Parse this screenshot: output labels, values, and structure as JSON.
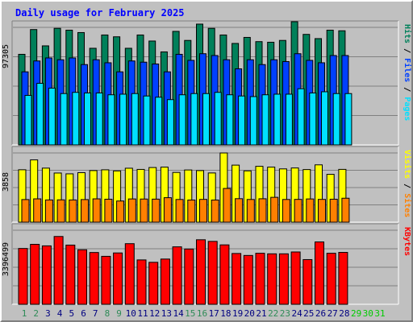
{
  "chart_data": {
    "type": "bar",
    "title": "Daily usage for February 2025",
    "title_color": "#0000ff",
    "categories": [
      "1",
      "2",
      "3",
      "4",
      "5",
      "6",
      "7",
      "8",
      "9",
      "10",
      "11",
      "12",
      "13",
      "14",
      "15",
      "16",
      "17",
      "18",
      "19",
      "20",
      "21",
      "22",
      "23",
      "24",
      "25",
      "26",
      "27",
      "28",
      "29",
      "30",
      "31"
    ],
    "weekend_color": "#2e8b57",
    "weekday_color": "#000080",
    "future_color": "#00cc00",
    "weekend_days": [
      "1",
      "2",
      "8",
      "9",
      "15",
      "16",
      "22",
      "23"
    ],
    "future_days": [
      "29",
      "30",
      "31"
    ],
    "panels": [
      {
        "max_label": "97305",
        "ymax": 97305,
        "series": [
          {
            "name": "Hits",
            "color": "#00805a",
            "values": [
              75000,
              95500,
              82000,
              96500,
              95000,
              93000,
              80000,
              91000,
              89500,
              80000,
              91000,
              86000,
              77000,
              94000,
              86500,
              100000,
              96500,
              91000,
              84000,
              89000,
              85500,
              85000,
              86500,
              102000,
              91500,
              88000,
              95000,
              94500
            ]
          },
          {
            "name": "Files",
            "color": "#0040ff",
            "values": [
              60500,
              69500,
              72000,
              70500,
              72000,
              66500,
              70500,
              68000,
              60500,
              69500,
              68500,
              67000,
              60500,
              75000,
              70000,
              75500,
              74000,
              70500,
              63000,
              70500,
              66500,
              70500,
              69000,
              75500,
              70000,
              68000,
              74000,
              74000
            ]
          },
          {
            "name": "Pages",
            "color": "#00e0ff",
            "values": [
              41000,
              51000,
              47000,
              42500,
              43500,
              43000,
              43000,
              41500,
              42000,
              42500,
              40500,
              39500,
              37500,
              41500,
              42500,
              42500,
              43500,
              41500,
              40500,
              40000,
              41500,
              42000,
              42000,
              46500,
              43000,
              44000,
              42500,
              42500
            ]
          }
        ]
      },
      {
        "max_label": "3858",
        "ymax": 3858,
        "series": [
          {
            "name": "Visits",
            "color": "#ffff00",
            "values": [
              2922,
              3471,
              3013,
              2739,
              2694,
              2760,
              2876,
              2919,
              2857,
              3007,
              2941,
              3046,
              3068,
              2772,
              2910,
              2874,
              2743,
              3858,
              3180,
              2860,
              3113,
              3068,
              2970,
              3021,
              2933,
              3195,
              2666,
              2943
            ]
          },
          {
            "name": "Sites",
            "color": "#ff8000",
            "values": [
              1260,
              1300,
              1240,
              1245,
              1240,
              1260,
              1300,
              1280,
              1180,
              1295,
              1290,
              1285,
              1365,
              1265,
              1235,
              1270,
              1235,
              1880,
              1310,
              1265,
              1305,
              1385,
              1265,
              1270,
              1295,
              1270,
              1280,
              1335
            ]
          }
        ]
      },
      {
        "max_label": "3396499",
        "ymax": 3396499,
        "series": [
          {
            "name": "KBytes",
            "color": "#ff0000",
            "values": [
              2560000,
              2750000,
              2680000,
              3110000,
              2715000,
              2500000,
              2375000,
              2200000,
              2355000,
              2780000,
              2035000,
              1925000,
              2075000,
              2635000,
              2535000,
              2960000,
              2885000,
              2725000,
              2330000,
              2240000,
              2340000,
              2315000,
              2315000,
              2400000,
              2050000,
              2860000,
              2340000,
              2380000
            ]
          }
        ]
      }
    ],
    "right_labels": [
      [
        {
          "text": "Hits",
          "color": "#00805a"
        },
        {
          "text": "Files",
          "color": "#0040ff"
        },
        {
          "text": "Pages",
          "color": "#00e0ff"
        }
      ],
      [
        {
          "text": "Visits",
          "color": "#ffff00"
        },
        {
          "text": "Sites",
          "color": "#ff8000"
        }
      ],
      [
        {
          "text": "KBytes",
          "color": "#ff0000"
        }
      ]
    ],
    "separator": " / ",
    "separator_color": "#000000"
  }
}
